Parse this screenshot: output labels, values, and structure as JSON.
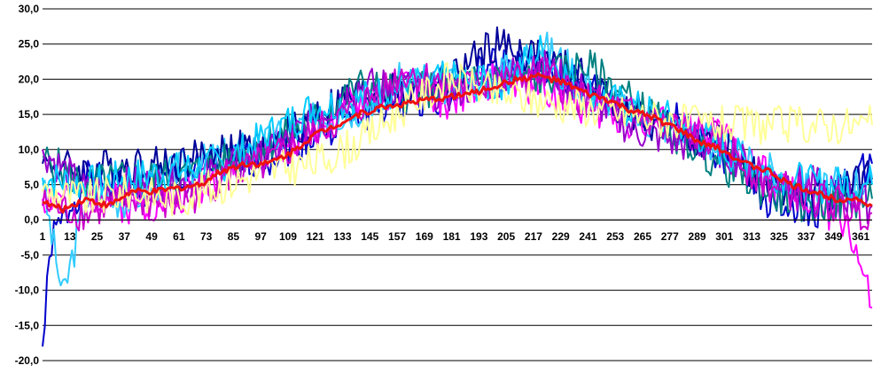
{
  "chart_data": {
    "type": "line",
    "title": "",
    "xlabel": "",
    "ylabel": "",
    "xlim": [
      1,
      366
    ],
    "ylim": [
      -20,
      30
    ],
    "y_ticks": [
      "30,0",
      "25,0",
      "20,0",
      "15,0",
      "10,0",
      "5,0",
      "0,0",
      "-5,0",
      "-10,0",
      "-15,0",
      "-20,0"
    ],
    "x_ticks": [
      "1",
      "13",
      "25",
      "37",
      "49",
      "61",
      "73",
      "85",
      "97",
      "109",
      "121",
      "133",
      "145",
      "157",
      "169",
      "181",
      "193",
      "205",
      "217",
      "229",
      "241",
      "253",
      "265",
      "277",
      "289",
      "301",
      "313",
      "325",
      "337",
      "349",
      "361"
    ],
    "grid": "horizontal",
    "legend": "none",
    "series": [
      {
        "color": "#0000cc",
        "anchors": [
          [
            1,
            -18
          ],
          [
            5,
            -3
          ],
          [
            20,
            6
          ],
          [
            40,
            4
          ],
          [
            60,
            6
          ],
          [
            80,
            8
          ],
          [
            100,
            9
          ],
          [
            120,
            12
          ],
          [
            140,
            15
          ],
          [
            160,
            17
          ],
          [
            180,
            18
          ],
          [
            200,
            22
          ],
          [
            220,
            21
          ],
          [
            240,
            19
          ],
          [
            260,
            16
          ],
          [
            280,
            14
          ],
          [
            300,
            9
          ],
          [
            320,
            3
          ],
          [
            340,
            1
          ],
          [
            366,
            8
          ]
        ]
      },
      {
        "color": "#ff00ff",
        "anchors": [
          [
            1,
            3
          ],
          [
            20,
            4
          ],
          [
            40,
            2
          ],
          [
            60,
            3
          ],
          [
            80,
            7
          ],
          [
            100,
            10
          ],
          [
            120,
            13
          ],
          [
            140,
            17
          ],
          [
            160,
            19
          ],
          [
            180,
            17
          ],
          [
            200,
            20
          ],
          [
            220,
            19
          ],
          [
            240,
            16
          ],
          [
            260,
            14
          ],
          [
            280,
            13
          ],
          [
            300,
            12
          ],
          [
            320,
            6
          ],
          [
            340,
            2
          ],
          [
            355,
            0
          ],
          [
            366,
            -12.5
          ]
        ]
      },
      {
        "color": "#33ccff",
        "anchors": [
          [
            1,
            5
          ],
          [
            10,
            -11
          ],
          [
            20,
            3
          ],
          [
            40,
            3
          ],
          [
            60,
            7
          ],
          [
            80,
            9
          ],
          [
            100,
            11
          ],
          [
            120,
            14
          ],
          [
            140,
            16
          ],
          [
            160,
            20
          ],
          [
            180,
            19
          ],
          [
            200,
            21
          ],
          [
            220,
            25
          ],
          [
            240,
            20
          ],
          [
            260,
            15
          ],
          [
            280,
            13
          ],
          [
            300,
            10
          ],
          [
            320,
            7
          ],
          [
            340,
            4
          ],
          [
            366,
            6
          ]
        ]
      },
      {
        "color": "#000099",
        "anchors": [
          [
            1,
            8
          ],
          [
            20,
            7
          ],
          [
            40,
            8
          ],
          [
            60,
            8
          ],
          [
            80,
            10
          ],
          [
            100,
            10
          ],
          [
            120,
            15
          ],
          [
            140,
            18
          ],
          [
            160,
            18
          ],
          [
            180,
            20
          ],
          [
            200,
            25
          ],
          [
            220,
            23
          ],
          [
            240,
            20
          ],
          [
            260,
            15
          ],
          [
            280,
            12
          ],
          [
            300,
            11
          ],
          [
            320,
            5
          ],
          [
            340,
            3
          ],
          [
            366,
            6
          ]
        ]
      },
      {
        "color": "#008080",
        "anchors": [
          [
            1,
            9
          ],
          [
            20,
            5
          ],
          [
            40,
            6
          ],
          [
            60,
            6
          ],
          [
            80,
            8
          ],
          [
            100,
            11
          ],
          [
            120,
            14
          ],
          [
            140,
            19
          ],
          [
            160,
            18
          ],
          [
            180,
            19
          ],
          [
            200,
            20
          ],
          [
            220,
            20
          ],
          [
            240,
            22
          ],
          [
            260,
            17
          ],
          [
            280,
            12
          ],
          [
            300,
            8
          ],
          [
            320,
            4
          ],
          [
            340,
            2
          ],
          [
            366,
            3
          ]
        ]
      },
      {
        "color": "#9900cc",
        "anchors": [
          [
            1,
            10
          ],
          [
            20,
            4
          ],
          [
            40,
            5
          ],
          [
            60,
            5
          ],
          [
            80,
            7
          ],
          [
            100,
            9
          ],
          [
            120,
            14
          ],
          [
            140,
            19
          ],
          [
            160,
            19
          ],
          [
            180,
            18
          ],
          [
            200,
            20
          ],
          [
            220,
            22
          ],
          [
            240,
            18
          ],
          [
            260,
            13
          ],
          [
            280,
            11
          ],
          [
            300,
            10
          ],
          [
            320,
            6
          ],
          [
            340,
            5
          ],
          [
            366,
            2
          ]
        ]
      },
      {
        "color": "#00ccff",
        "anchors": [
          [
            1,
            6
          ],
          [
            20,
            5
          ],
          [
            40,
            6
          ],
          [
            60,
            7
          ],
          [
            80,
            8
          ],
          [
            100,
            12
          ],
          [
            120,
            16
          ],
          [
            140,
            17
          ],
          [
            160,
            19
          ],
          [
            180,
            20
          ],
          [
            200,
            19
          ],
          [
            220,
            24
          ],
          [
            240,
            18
          ],
          [
            260,
            16
          ],
          [
            280,
            14
          ],
          [
            300,
            10
          ],
          [
            320,
            7
          ],
          [
            340,
            5
          ],
          [
            366,
            5
          ]
        ]
      },
      {
        "color": "#cc00cc",
        "anchors": [
          [
            1,
            2
          ],
          [
            20,
            1
          ],
          [
            40,
            3
          ],
          [
            60,
            2
          ],
          [
            80,
            6
          ],
          [
            100,
            8
          ],
          [
            120,
            12
          ],
          [
            140,
            16
          ],
          [
            160,
            21
          ],
          [
            180,
            19
          ],
          [
            200,
            19
          ],
          [
            220,
            21
          ],
          [
            240,
            17
          ],
          [
            260,
            15
          ],
          [
            280,
            13
          ],
          [
            300,
            11
          ],
          [
            320,
            5
          ],
          [
            340,
            3
          ],
          [
            366,
            1
          ]
        ]
      },
      {
        "color": "#ffff99",
        "anchors": [
          [
            1,
            4
          ],
          [
            20,
            3
          ],
          [
            40,
            4
          ],
          [
            60,
            3
          ],
          [
            80,
            5
          ],
          [
            100,
            7
          ],
          [
            120,
            8
          ],
          [
            140,
            11
          ],
          [
            160,
            16
          ],
          [
            180,
            20
          ],
          [
            200,
            18
          ],
          [
            220,
            17
          ],
          [
            240,
            16
          ],
          [
            260,
            15
          ],
          [
            280,
            14
          ],
          [
            290,
            13.5
          ],
          [
            366,
            13.5
          ]
        ]
      },
      {
        "color": "#ee1111",
        "width": 3,
        "anchors": [
          [
            1,
            2.5
          ],
          [
            10,
            1.5
          ],
          [
            20,
            3
          ],
          [
            30,
            2
          ],
          [
            40,
            4
          ],
          [
            50,
            4
          ],
          [
            60,
            4.5
          ],
          [
            70,
            5
          ],
          [
            80,
            7
          ],
          [
            90,
            8
          ],
          [
            100,
            8
          ],
          [
            110,
            9.5
          ],
          [
            120,
            12
          ],
          [
            130,
            13.5
          ],
          [
            140,
            15
          ],
          [
            150,
            16
          ],
          [
            160,
            16.5
          ],
          [
            170,
            17
          ],
          [
            180,
            17.5
          ],
          [
            190,
            18
          ],
          [
            200,
            19
          ],
          [
            210,
            20
          ],
          [
            220,
            20.5
          ],
          [
            230,
            19.5
          ],
          [
            240,
            18
          ],
          [
            250,
            17
          ],
          [
            260,
            15.5
          ],
          [
            270,
            14.5
          ],
          [
            280,
            13
          ],
          [
            290,
            11
          ],
          [
            300,
            10
          ],
          [
            310,
            8
          ],
          [
            320,
            7
          ],
          [
            330,
            5
          ],
          [
            340,
            4
          ],
          [
            350,
            3
          ],
          [
            360,
            3
          ],
          [
            366,
            2
          ]
        ]
      }
    ]
  }
}
